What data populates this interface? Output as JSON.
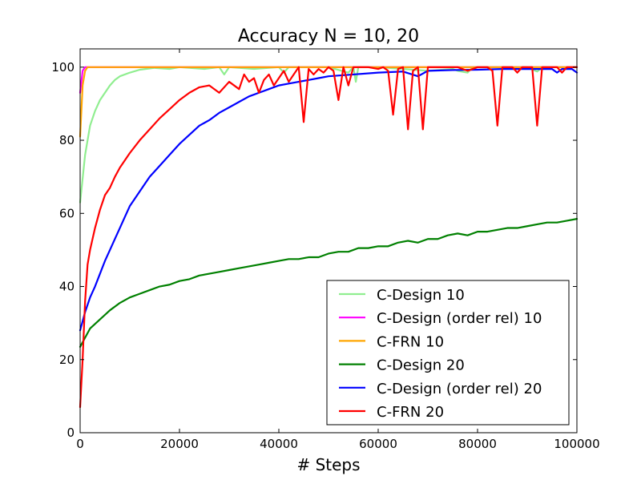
{
  "chart_data": {
    "type": "line",
    "title": "Accuracy N = 10, 20",
    "xlabel": "# Steps",
    "ylabel": "",
    "xlim": [
      0,
      100000
    ],
    "ylim": [
      0,
      105
    ],
    "xticks": [
      0,
      20000,
      40000,
      60000,
      80000,
      100000
    ],
    "yticks": [
      0,
      20,
      40,
      60,
      80,
      100
    ],
    "grid": false,
    "legend_position": "lower-right",
    "series": [
      {
        "name": "C-Design 10",
        "color": "#90ee90",
        "points": [
          [
            0,
            63
          ],
          [
            1000,
            76
          ],
          [
            2000,
            84
          ],
          [
            3000,
            88
          ],
          [
            4000,
            91
          ],
          [
            5000,
            93
          ],
          [
            6000,
            95
          ],
          [
            7000,
            96.5
          ],
          [
            8000,
            97.5
          ],
          [
            10000,
            98.5
          ],
          [
            12000,
            99.3
          ],
          [
            15000,
            99.8
          ],
          [
            18000,
            99.5
          ],
          [
            20000,
            100
          ],
          [
            25000,
            99.5
          ],
          [
            28000,
            100
          ],
          [
            29000,
            98
          ],
          [
            30000,
            100
          ],
          [
            35000,
            99.5
          ],
          [
            40000,
            100
          ],
          [
            41000,
            98.5
          ],
          [
            42000,
            100
          ],
          [
            50000,
            100
          ],
          [
            54000,
            98.5
          ],
          [
            55000,
            100
          ],
          [
            55500,
            96
          ],
          [
            56000,
            100
          ],
          [
            60000,
            100
          ],
          [
            70000,
            99
          ],
          [
            75000,
            99.5
          ],
          [
            76000,
            99
          ],
          [
            78000,
            98.5
          ],
          [
            79000,
            100
          ],
          [
            85000,
            100
          ],
          [
            90000,
            100
          ],
          [
            92000,
            98.8
          ],
          [
            93000,
            100
          ],
          [
            100000,
            100
          ]
        ]
      },
      {
        "name": "C-Design (order rel) 10",
        "color": "#ff00ff",
        "points": [
          [
            0,
            93
          ],
          [
            500,
            99
          ],
          [
            1000,
            100
          ],
          [
            100000,
            100
          ]
        ]
      },
      {
        "name": "C-FRN 10",
        "color": "#ffa500",
        "points": [
          [
            0,
            81
          ],
          [
            500,
            95
          ],
          [
            1000,
            99
          ],
          [
            1500,
            100
          ],
          [
            100000,
            100
          ]
        ]
      },
      {
        "name": "C-Design 20",
        "color": "#008000",
        "points": [
          [
            0,
            23.5
          ],
          [
            1000,
            26
          ],
          [
            2000,
            28.5
          ],
          [
            4000,
            31
          ],
          [
            6000,
            33.5
          ],
          [
            8000,
            35.5
          ],
          [
            10000,
            37
          ],
          [
            12000,
            38
          ],
          [
            14000,
            39
          ],
          [
            16000,
            40
          ],
          [
            18000,
            40.5
          ],
          [
            20000,
            41.5
          ],
          [
            22000,
            42
          ],
          [
            24000,
            43
          ],
          [
            26000,
            43.5
          ],
          [
            28000,
            44
          ],
          [
            30000,
            44.5
          ],
          [
            32000,
            45
          ],
          [
            34000,
            45.5
          ],
          [
            36000,
            46
          ],
          [
            38000,
            46.5
          ],
          [
            40000,
            47
          ],
          [
            42000,
            47.5
          ],
          [
            44000,
            47.5
          ],
          [
            46000,
            48
          ],
          [
            48000,
            48
          ],
          [
            50000,
            49
          ],
          [
            52000,
            49.5
          ],
          [
            54000,
            49.5
          ],
          [
            56000,
            50.5
          ],
          [
            58000,
            50.5
          ],
          [
            60000,
            51
          ],
          [
            62000,
            51
          ],
          [
            64000,
            52
          ],
          [
            66000,
            52.5
          ],
          [
            68000,
            52
          ],
          [
            70000,
            53
          ],
          [
            72000,
            53
          ],
          [
            74000,
            54
          ],
          [
            76000,
            54.5
          ],
          [
            78000,
            54
          ],
          [
            80000,
            55
          ],
          [
            82000,
            55
          ],
          [
            84000,
            55.5
          ],
          [
            86000,
            56
          ],
          [
            88000,
            56
          ],
          [
            90000,
            56.5
          ],
          [
            92000,
            57
          ],
          [
            94000,
            57.5
          ],
          [
            96000,
            57.5
          ],
          [
            98000,
            58
          ],
          [
            100000,
            58.5
          ]
        ]
      },
      {
        "name": "C-Design (order rel) 20",
        "color": "#0000ff",
        "points": [
          [
            0,
            28
          ],
          [
            1000,
            33
          ],
          [
            2000,
            37
          ],
          [
            3000,
            40
          ],
          [
            4000,
            43.5
          ],
          [
            5000,
            47
          ],
          [
            6000,
            50
          ],
          [
            7000,
            53
          ],
          [
            8000,
            56
          ],
          [
            9000,
            59
          ],
          [
            10000,
            62
          ],
          [
            12000,
            66
          ],
          [
            14000,
            70
          ],
          [
            16000,
            73
          ],
          [
            18000,
            76
          ],
          [
            20000,
            79
          ],
          [
            22000,
            81.5
          ],
          [
            24000,
            84
          ],
          [
            26000,
            85.5
          ],
          [
            28000,
            87.5
          ],
          [
            30000,
            89
          ],
          [
            32000,
            90.5
          ],
          [
            34000,
            92
          ],
          [
            36000,
            93
          ],
          [
            38000,
            94
          ],
          [
            40000,
            95
          ],
          [
            42000,
            95.5
          ],
          [
            44000,
            96
          ],
          [
            46000,
            96.5
          ],
          [
            48000,
            97
          ],
          [
            50000,
            97.5
          ],
          [
            55000,
            98
          ],
          [
            60000,
            98.5
          ],
          [
            65000,
            98.8
          ],
          [
            68000,
            97.5
          ],
          [
            70000,
            99
          ],
          [
            75000,
            99.2
          ],
          [
            80000,
            99.3
          ],
          [
            85000,
            99.5
          ],
          [
            90000,
            99.5
          ],
          [
            95000,
            99.5
          ],
          [
            96000,
            98.5
          ],
          [
            97000,
            99.5
          ],
          [
            99000,
            99.5
          ],
          [
            100000,
            98.5
          ]
        ]
      },
      {
        "name": "C-FRN 20",
        "color": "#ff0000",
        "points": [
          [
            0,
            7
          ],
          [
            500,
            20
          ],
          [
            1000,
            36
          ],
          [
            1500,
            46
          ],
          [
            2000,
            50
          ],
          [
            3000,
            56
          ],
          [
            4000,
            61
          ],
          [
            5000,
            65
          ],
          [
            6000,
            67
          ],
          [
            7000,
            70
          ],
          [
            8000,
            72.5
          ],
          [
            9000,
            74.5
          ],
          [
            10000,
            76.5
          ],
          [
            12000,
            80
          ],
          [
            14000,
            83
          ],
          [
            16000,
            86
          ],
          [
            18000,
            88.5
          ],
          [
            20000,
            91
          ],
          [
            22000,
            93
          ],
          [
            24000,
            94.5
          ],
          [
            26000,
            95
          ],
          [
            28000,
            93
          ],
          [
            30000,
            96
          ],
          [
            32000,
            94
          ],
          [
            33000,
            98
          ],
          [
            34000,
            96
          ],
          [
            35000,
            97
          ],
          [
            36000,
            93
          ],
          [
            37000,
            96.5
          ],
          [
            38000,
            98
          ],
          [
            39000,
            95
          ],
          [
            40000,
            97
          ],
          [
            41000,
            99
          ],
          [
            42000,
            96
          ],
          [
            43000,
            98
          ],
          [
            44000,
            100
          ],
          [
            45000,
            85
          ],
          [
            46000,
            99.5
          ],
          [
            47000,
            98
          ],
          [
            48000,
            99.5
          ],
          [
            49000,
            98.5
          ],
          [
            50000,
            100
          ],
          [
            51000,
            99
          ],
          [
            52000,
            91
          ],
          [
            53000,
            100
          ],
          [
            54000,
            95
          ],
          [
            55000,
            100
          ],
          [
            57000,
            100
          ],
          [
            58000,
            100
          ],
          [
            60000,
            99.5
          ],
          [
            61000,
            100
          ],
          [
            62000,
            99
          ],
          [
            63000,
            87
          ],
          [
            64000,
            99.5
          ],
          [
            65000,
            100
          ],
          [
            66000,
            83
          ],
          [
            67000,
            99
          ],
          [
            68000,
            100
          ],
          [
            69000,
            83
          ],
          [
            70000,
            100
          ],
          [
            72000,
            100
          ],
          [
            74000,
            100
          ],
          [
            76000,
            100
          ],
          [
            78000,
            99
          ],
          [
            80000,
            100
          ],
          [
            82000,
            100
          ],
          [
            83000,
            99
          ],
          [
            84000,
            84
          ],
          [
            85000,
            100
          ],
          [
            87000,
            100
          ],
          [
            88000,
            98.5
          ],
          [
            89000,
            100
          ],
          [
            91000,
            100
          ],
          [
            92000,
            84
          ],
          [
            93000,
            100
          ],
          [
            96000,
            100
          ],
          [
            97000,
            98.5
          ],
          [
            98000,
            100
          ],
          [
            100000,
            100
          ]
        ]
      }
    ]
  }
}
